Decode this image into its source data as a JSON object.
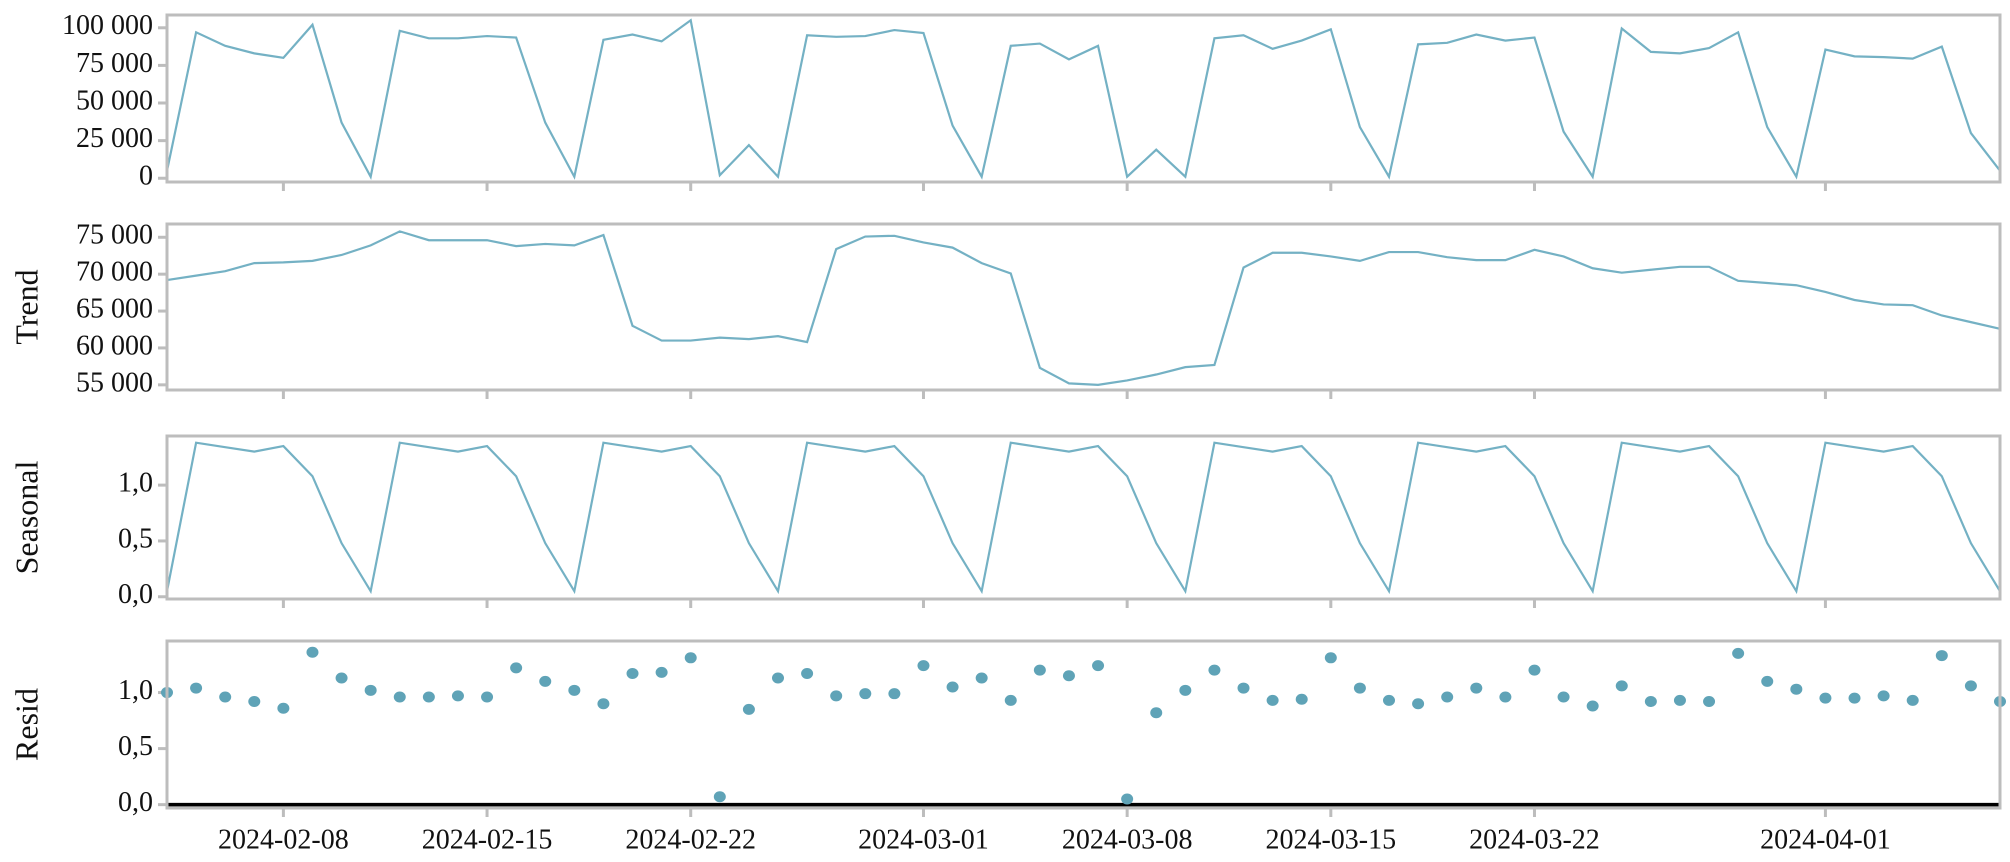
{
  "chart_data": {
    "type": "decomposition",
    "x": [
      "2024-02-04",
      "2024-02-05",
      "2024-02-06",
      "2024-02-07",
      "2024-02-08",
      "2024-02-09",
      "2024-02-10",
      "2024-02-11",
      "2024-02-12",
      "2024-02-13",
      "2024-02-14",
      "2024-02-15",
      "2024-02-16",
      "2024-02-17",
      "2024-02-18",
      "2024-02-19",
      "2024-02-20",
      "2024-02-21",
      "2024-02-22",
      "2024-02-23",
      "2024-02-24",
      "2024-02-25",
      "2024-02-26",
      "2024-02-27",
      "2024-02-28",
      "2024-02-29",
      "2024-03-01",
      "2024-03-02",
      "2024-03-03",
      "2024-03-04",
      "2024-03-05",
      "2024-03-06",
      "2024-03-07",
      "2024-03-08",
      "2024-03-09",
      "2024-03-10",
      "2024-03-11",
      "2024-03-12",
      "2024-03-13",
      "2024-03-14",
      "2024-03-15",
      "2024-03-16",
      "2024-03-17",
      "2024-03-18",
      "2024-03-19",
      "2024-03-20",
      "2024-03-21",
      "2024-03-22",
      "2024-03-23",
      "2024-03-24",
      "2024-03-25",
      "2024-03-26",
      "2024-03-27",
      "2024-03-28",
      "2024-03-29",
      "2024-03-30",
      "2024-03-31",
      "2024-04-01",
      "2024-04-02",
      "2024-04-03",
      "2024-04-04",
      "2024-04-05",
      "2024-04-06",
      "2024-04-07"
    ],
    "xlim": [
      "2024-02-04",
      "2024-04-07"
    ],
    "xticks": [
      "2024-02-08",
      "2024-02-15",
      "2024-02-22",
      "2024-03-01",
      "2024-03-08",
      "2024-03-15",
      "2024-03-22",
      "2024-04-01"
    ],
    "panels": [
      {
        "type": "line",
        "color": "#74b1c4",
        "values": [
          5000,
          97000,
          88000,
          83000,
          80000,
          102000,
          37000,
          1000,
          98000,
          93000,
          93000,
          94500,
          93500,
          37000,
          1000,
          92000,
          95500,
          91000,
          105000,
          2000,
          22000,
          1000,
          95000,
          94000,
          94500,
          98500,
          96500,
          35000,
          1000,
          88000,
          89500,
          79000,
          88000,
          1000,
          19000,
          1000,
          93000,
          95000,
          86000,
          91500,
          99000,
          34000,
          1000,
          89000,
          90000,
          95500,
          91500,
          93500,
          31000,
          1000,
          99500,
          84000,
          83000,
          86500,
          97000,
          34000,
          1000,
          85500,
          81000,
          80500,
          79500,
          87500,
          30000,
          5000
        ],
        "ylim": [
          -2500,
          108500
        ],
        "yticks": [
          0,
          {
            "value": 25000,
            "label": "25 000"
          },
          {
            "value": 50000,
            "label": "50 000"
          },
          {
            "value": 75000,
            "label": "75 000"
          },
          {
            "value": 100000,
            "label": "100 000"
          }
        ]
      },
      {
        "type": "line",
        "ylabel": "Trend",
        "color": "#74b1c4",
        "values": [
          69200,
          69800,
          70400,
          71500,
          71600,
          71800,
          72600,
          73900,
          75800,
          74600,
          74600,
          74600,
          73800,
          74100,
          73900,
          75300,
          63000,
          61000,
          61000,
          61400,
          61200,
          61600,
          60800,
          73400,
          75100,
          75200,
          74300,
          73600,
          71500,
          70100,
          57300,
          55200,
          55000,
          55600,
          56400,
          57400,
          57700,
          70900,
          72900,
          72900,
          72400,
          71800,
          73000,
          73000,
          72300,
          71900,
          71900,
          73300,
          72400,
          70800,
          70200,
          70600,
          71000,
          71000,
          69100,
          68800,
          68500,
          67600,
          66500,
          65900,
          65800,
          64400,
          63500,
          62600
        ],
        "ylim": [
          54300,
          76800
        ],
        "yticks": [
          {
            "value": 55000,
            "label": "55 000"
          },
          {
            "value": 60000,
            "label": "60 000"
          },
          {
            "value": 65000,
            "label": "65 000"
          },
          {
            "value": 70000,
            "label": "70 000"
          },
          {
            "value": 75000,
            "label": "75 000"
          }
        ]
      },
      {
        "type": "line",
        "ylabel": "Seasonal",
        "color": "#74b1c4",
        "values": [
          0.05,
          1.38,
          1.34,
          1.3,
          1.35,
          1.08,
          0.48,
          0.05,
          1.38,
          1.34,
          1.3,
          1.35,
          1.08,
          0.48,
          0.05,
          1.38,
          1.34,
          1.3,
          1.35,
          1.08,
          0.48,
          0.05,
          1.38,
          1.34,
          1.3,
          1.35,
          1.08,
          0.48,
          0.05,
          1.38,
          1.34,
          1.3,
          1.35,
          1.08,
          0.48,
          0.05,
          1.38,
          1.34,
          1.3,
          1.35,
          1.08,
          0.48,
          0.05,
          1.38,
          1.34,
          1.3,
          1.35,
          1.08,
          0.48,
          0.05,
          1.38,
          1.34,
          1.3,
          1.35,
          1.08,
          0.48,
          0.05,
          1.38,
          1.34,
          1.3,
          1.35,
          1.08,
          0.48,
          0.05
        ],
        "ylim": [
          -0.02,
          1.44
        ],
        "yticks": [
          {
            "value": 0,
            "label": "0,0"
          },
          {
            "value": 0.5,
            "label": "0,5"
          },
          {
            "value": 1,
            "label": "1,0"
          }
        ]
      },
      {
        "type": "scatter",
        "ylabel": "Resid",
        "color": "#5fa3b7",
        "baseline_color": "#000000",
        "values": [
          1.0,
          1.04,
          0.96,
          0.92,
          0.86,
          1.36,
          1.13,
          1.02,
          0.96,
          0.96,
          0.97,
          0.96,
          1.22,
          1.1,
          1.02,
          0.9,
          1.17,
          1.18,
          1.31,
          0.07,
          0.85,
          1.13,
          1.17,
          0.97,
          0.99,
          0.99,
          1.24,
          1.05,
          1.13,
          0.93,
          1.2,
          1.15,
          1.24,
          0.05,
          0.82,
          1.02,
          1.2,
          1.04,
          0.93,
          0.94,
          1.31,
          1.04,
          0.93,
          0.9,
          0.96,
          1.04,
          0.96,
          1.2,
          0.96,
          0.88,
          1.06,
          0.92,
          0.93,
          0.92,
          1.35,
          1.1,
          1.03,
          0.95,
          0.95,
          0.97,
          0.93,
          1.33,
          1.06,
          0.92
        ],
        "ylim": [
          -0.03,
          1.46
        ],
        "yticks": [
          {
            "value": 0,
            "label": "0,0"
          },
          {
            "value": 0.5,
            "label": "0,5"
          },
          {
            "value": 1,
            "label": "1,0"
          }
        ]
      }
    ]
  }
}
